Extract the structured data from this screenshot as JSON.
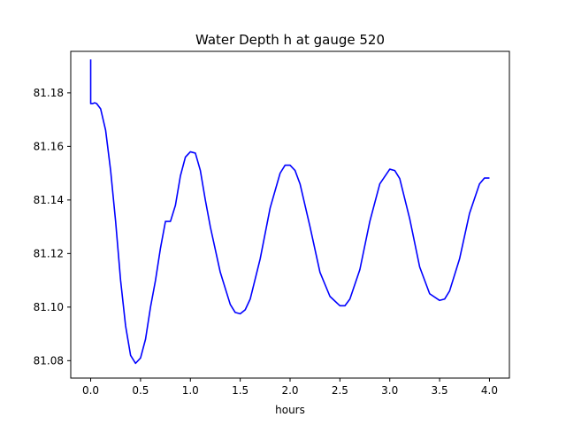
{
  "chart_data": {
    "type": "line",
    "title": "Water Depth h at gauge 520",
    "xlabel": "hours",
    "ylabel": "",
    "xlim": [
      -0.2,
      4.2
    ],
    "ylim": [
      81.0735,
      81.1955
    ],
    "xticks": [
      0.0,
      0.5,
      1.0,
      1.5,
      2.0,
      2.5,
      3.0,
      3.5,
      4.0
    ],
    "xtick_labels": [
      "0.0",
      "0.5",
      "1.0",
      "1.5",
      "2.0",
      "2.5",
      "3.0",
      "3.5",
      "4.0"
    ],
    "yticks": [
      81.08,
      81.1,
      81.12,
      81.14,
      81.16,
      81.18
    ],
    "ytick_labels": [
      "81.08",
      "81.10",
      "81.12",
      "81.14",
      "81.16",
      "81.18"
    ],
    "grid": false,
    "series": [
      {
        "color": "#0000ff",
        "x": [
          0.0,
          0.0,
          0.003,
          0.02,
          0.04,
          0.06,
          0.1,
          0.15,
          0.2,
          0.25,
          0.3,
          0.35,
          0.4,
          0.45,
          0.5,
          0.55,
          0.6,
          0.65,
          0.7,
          0.75,
          0.8,
          0.85,
          0.9,
          0.95,
          1.0,
          1.05,
          1.1,
          1.15,
          1.2,
          1.3,
          1.4,
          1.45,
          1.5,
          1.55,
          1.6,
          1.7,
          1.8,
          1.9,
          1.95,
          2.0,
          2.05,
          2.1,
          2.2,
          2.3,
          2.4,
          2.5,
          2.55,
          2.6,
          2.7,
          2.8,
          2.9,
          3.0,
          3.05,
          3.1,
          3.2,
          3.3,
          3.4,
          3.5,
          3.55,
          3.6,
          3.7,
          3.8,
          3.9,
          3.95,
          4.0
        ],
        "y": [
          81.1925,
          81.176,
          81.176,
          81.176,
          81.1763,
          81.176,
          81.174,
          81.166,
          81.151,
          81.132,
          81.11,
          81.093,
          81.082,
          81.079,
          81.081,
          81.088,
          81.1,
          81.11,
          81.122,
          81.132,
          81.132,
          81.138,
          81.149,
          81.156,
          81.158,
          81.1575,
          81.151,
          81.14,
          81.13,
          81.113,
          81.101,
          81.098,
          81.0975,
          81.099,
          81.103,
          81.118,
          81.137,
          81.15,
          81.153,
          81.153,
          81.151,
          81.146,
          81.13,
          81.113,
          81.104,
          81.1005,
          81.1005,
          81.103,
          81.114,
          81.132,
          81.146,
          81.1515,
          81.151,
          81.148,
          81.133,
          81.115,
          81.105,
          81.1025,
          81.103,
          81.106,
          81.118,
          81.135,
          81.146,
          81.1482,
          81.1482
        ]
      }
    ]
  }
}
